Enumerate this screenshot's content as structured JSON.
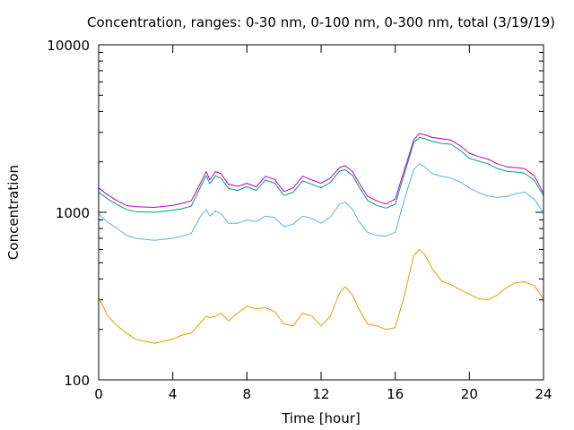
{
  "chart_data": {
    "type": "line",
    "title": "Concentration, ranges: 0-30 nm, 0-100 nm, 0-300 nm, total (3/19/19)",
    "xlabel": "Time [hour]",
    "ylabel": "Concentration",
    "xlim": [
      0,
      24
    ],
    "ylim": [
      100,
      10000
    ],
    "yscale": "log",
    "x_ticks": [
      0,
      4,
      8,
      12,
      16,
      20,
      24
    ],
    "y_ticks": [
      100,
      1000,
      10000
    ],
    "grid": false,
    "legend": "none",
    "x": [
      0,
      0.5,
      1,
      1.5,
      2,
      3,
      4,
      4.5,
      5,
      5.5,
      5.8,
      6,
      6.3,
      6.6,
      7,
      7.5,
      8,
      8.5,
      9,
      9.5,
      10,
      10.5,
      11,
      11.5,
      12,
      12.5,
      13,
      13.3,
      13.7,
      14,
      14.5,
      15,
      15.5,
      16,
      16.5,
      17,
      17.3,
      17.6,
      18,
      18.5,
      19,
      19.5,
      20,
      20.5,
      21,
      21.5,
      22,
      22.5,
      23,
      23.5,
      24
    ],
    "series": [
      {
        "color": "#c000c0",
        "values": [
          1400,
          1270,
          1170,
          1100,
          1080,
          1070,
          1100,
          1130,
          1170,
          1500,
          1750,
          1560,
          1750,
          1700,
          1470,
          1430,
          1490,
          1420,
          1640,
          1570,
          1330,
          1400,
          1640,
          1560,
          1490,
          1600,
          1850,
          1900,
          1750,
          1530,
          1250,
          1170,
          1120,
          1200,
          1800,
          2700,
          2950,
          2900,
          2800,
          2750,
          2700,
          2500,
          2250,
          2150,
          2080,
          1950,
          1870,
          1850,
          1820,
          1650,
          1300
        ]
      },
      {
        "color": "#009e73",
        "values": [
          1320,
          1200,
          1110,
          1040,
          1010,
          1000,
          1030,
          1050,
          1090,
          1420,
          1650,
          1480,
          1650,
          1600,
          1390,
          1350,
          1420,
          1350,
          1560,
          1490,
          1260,
          1320,
          1540,
          1470,
          1400,
          1510,
          1760,
          1800,
          1660,
          1450,
          1180,
          1100,
          1060,
          1120,
          1700,
          2600,
          2800,
          2750,
          2650,
          2580,
          2550,
          2350,
          2100,
          2020,
          1950,
          1830,
          1760,
          1740,
          1710,
          1550,
          1260
        ]
      },
      {
        "color": "#56b4e9",
        "values": [
          980,
          870,
          800,
          730,
          700,
          680,
          700,
          720,
          750,
          950,
          1040,
          950,
          1020,
          980,
          860,
          860,
          900,
          880,
          950,
          930,
          820,
          850,
          950,
          920,
          860,
          940,
          1120,
          1150,
          1040,
          900,
          760,
          730,
          720,
          760,
          1200,
          1800,
          1950,
          1870,
          1700,
          1640,
          1600,
          1520,
          1400,
          1310,
          1250,
          1230,
          1240,
          1290,
          1320,
          1200,
          990
        ]
      },
      {
        "color": "#e69f00",
        "values": [
          310,
          240,
          210,
          190,
          175,
          165,
          175,
          185,
          190,
          220,
          240,
          235,
          240,
          250,
          225,
          250,
          275,
          265,
          270,
          255,
          215,
          210,
          250,
          240,
          210,
          240,
          330,
          360,
          320,
          270,
          215,
          210,
          200,
          205,
          320,
          550,
          600,
          560,
          460,
          390,
          370,
          345,
          325,
          305,
          300,
          320,
          355,
          380,
          385,
          365,
          305
        ]
      }
    ]
  }
}
